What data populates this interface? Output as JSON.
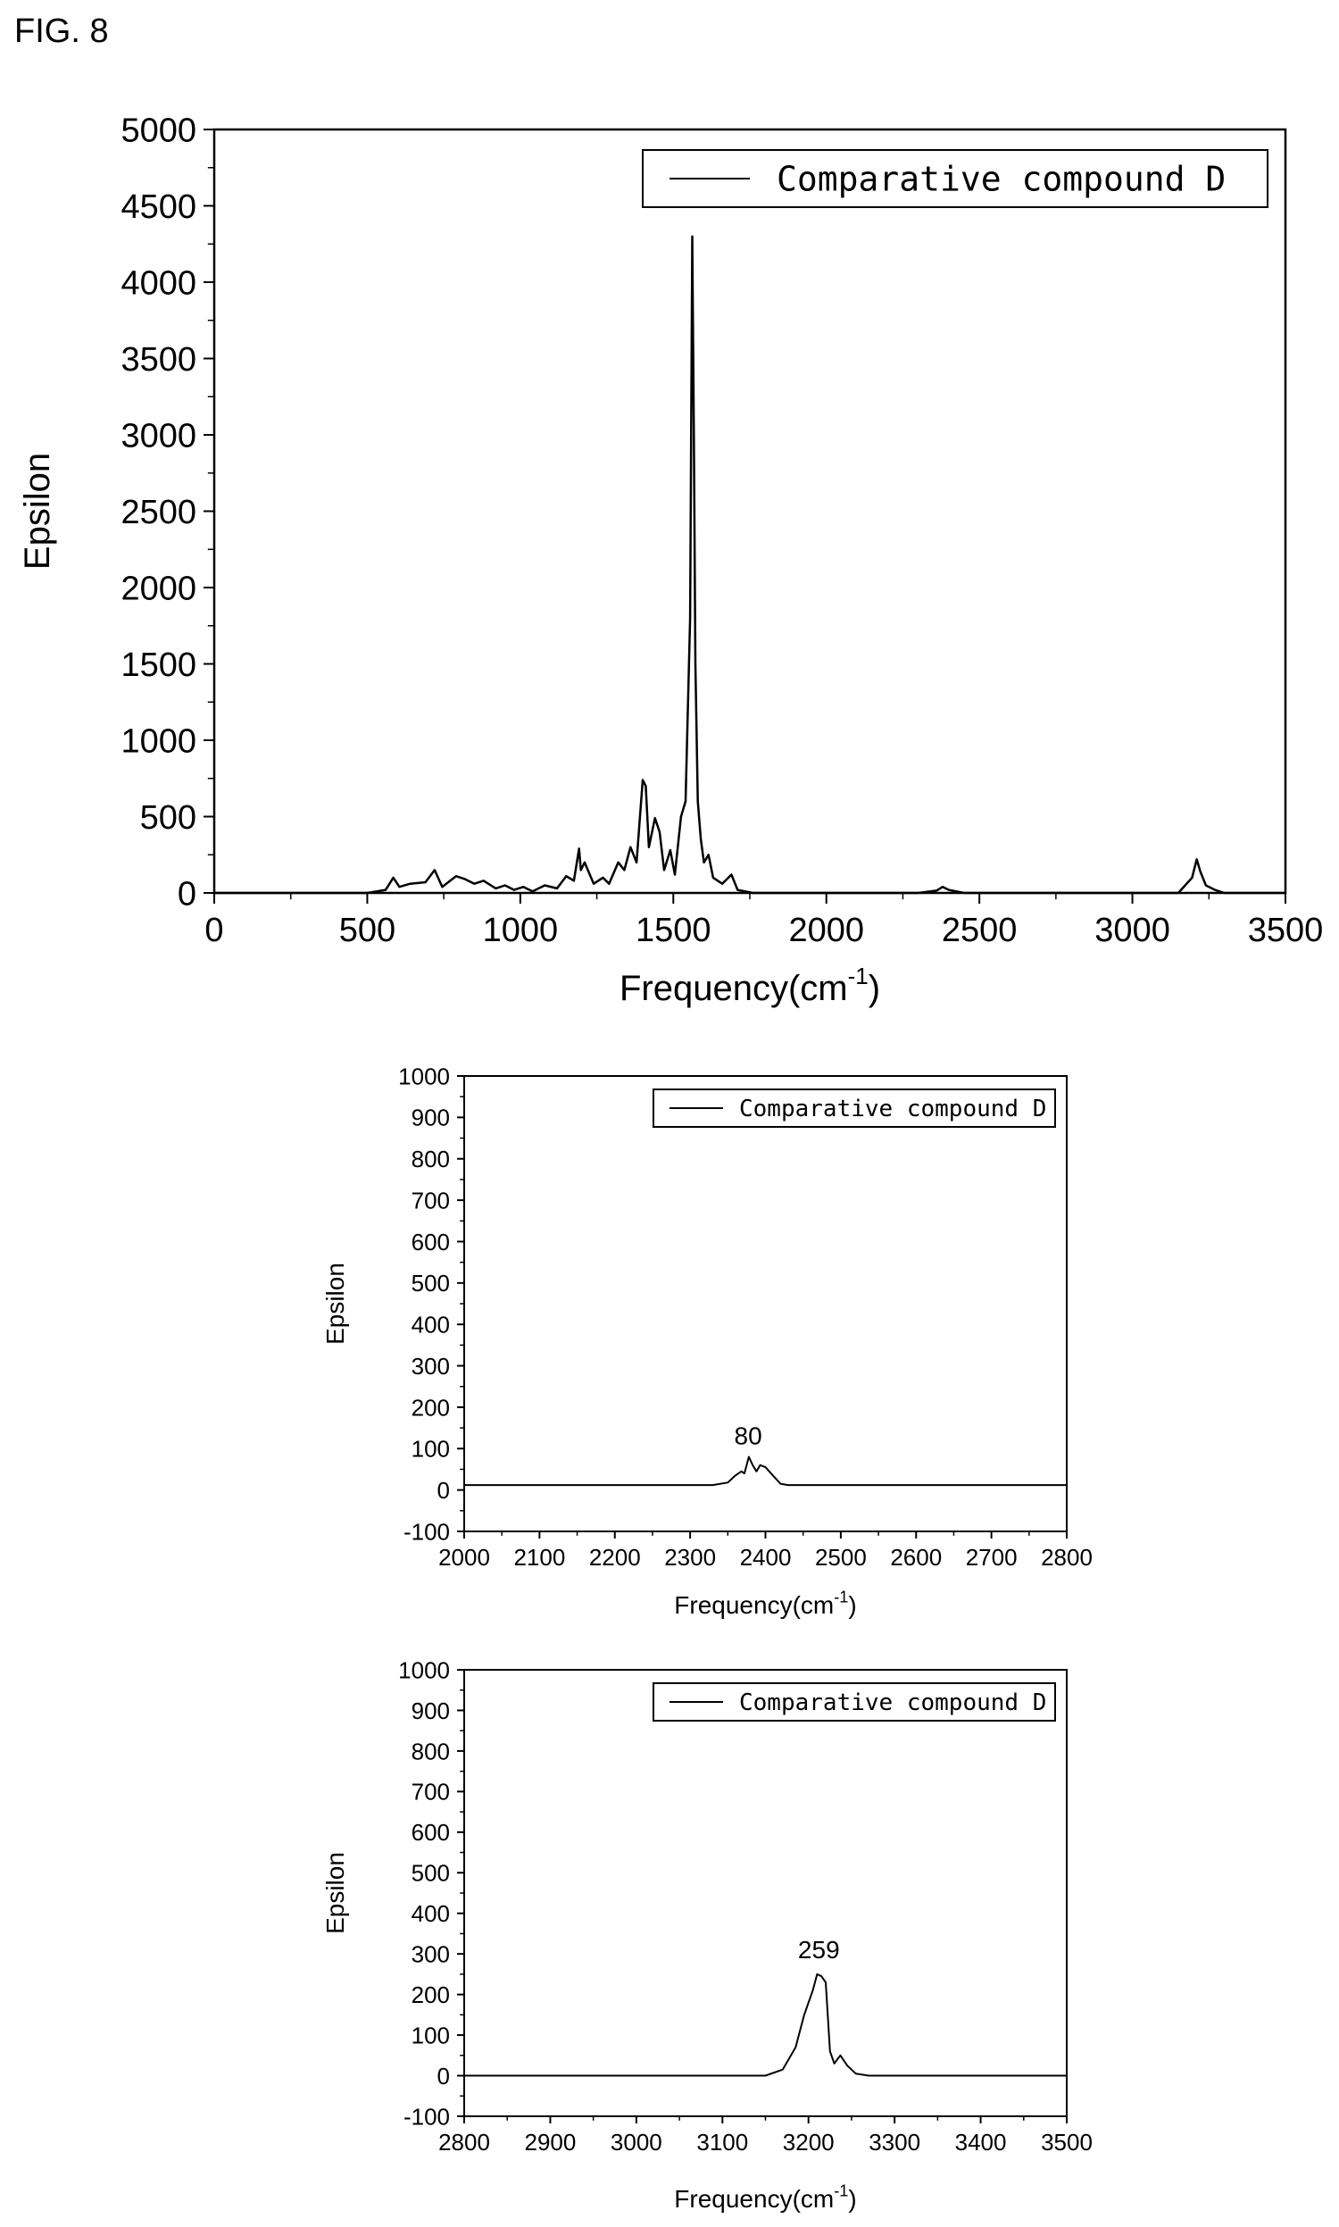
{
  "figure_label": "FIG. 8",
  "chart_data": [
    {
      "type": "line",
      "title": "",
      "xlabel": "Frequency(cm",
      "xlabel_sup": "-1",
      "xlabel_suffix": ")",
      "ylabel": "Epsilon",
      "xlim": [
        0,
        3500
      ],
      "ylim": [
        0,
        5000
      ],
      "xticks": [
        0,
        500,
        1000,
        1500,
        2000,
        2500,
        3000,
        3500
      ],
      "yticks": [
        0,
        500,
        1000,
        1500,
        2000,
        2500,
        3000,
        3500,
        4000,
        4500,
        5000
      ],
      "xtick_labels": [
        "0",
        "500",
        "1000",
        "1500",
        "2000",
        "2500",
        "3000",
        "3500"
      ],
      "ytick_labels": [
        "0",
        "500",
        "1000",
        "1500",
        "2000",
        "2500",
        "3000",
        "3500",
        "4000",
        "4500",
        "5000"
      ],
      "grid": false,
      "legend_position": "top-right",
      "series": [
        {
          "name": "Comparative compound D",
          "x": [
            0,
            500,
            560,
            585,
            605,
            640,
            690,
            720,
            745,
            790,
            820,
            850,
            880,
            920,
            950,
            980,
            1010,
            1040,
            1080,
            1120,
            1150,
            1175,
            1192,
            1198,
            1210,
            1240,
            1270,
            1290,
            1320,
            1340,
            1360,
            1380,
            1400,
            1410,
            1420,
            1440,
            1455,
            1470,
            1490,
            1505,
            1525,
            1540,
            1555,
            1562,
            1567,
            1572,
            1580,
            1590,
            1600,
            1615,
            1630,
            1660,
            1690,
            1710,
            1760,
            2300,
            2360,
            2380,
            2400,
            2450,
            3150,
            3195,
            3210,
            3222,
            3240,
            3270,
            3300,
            3500
          ],
          "y": [
            0,
            0,
            20,
            100,
            40,
            60,
            70,
            150,
            40,
            110,
            90,
            60,
            80,
            30,
            50,
            20,
            40,
            10,
            50,
            30,
            110,
            80,
            290,
            150,
            200,
            60,
            100,
            60,
            200,
            150,
            300,
            200,
            740,
            700,
            300,
            490,
            400,
            150,
            280,
            120,
            500,
            600,
            1800,
            4300,
            3000,
            1500,
            600,
            350,
            200,
            250,
            100,
            60,
            120,
            20,
            0,
            0,
            15,
            40,
            20,
            0,
            0,
            100,
            220,
            140,
            50,
            20,
            0,
            0
          ]
        }
      ]
    },
    {
      "type": "line",
      "title": "",
      "xlabel": "Frequency(cm",
      "xlabel_sup": "-1",
      "xlabel_suffix": ")",
      "ylabel": "Epsilon",
      "xlim": [
        2000,
        2800
      ],
      "ylim": [
        -100,
        1000
      ],
      "xticks": [
        2000,
        2100,
        2200,
        2300,
        2400,
        2500,
        2600,
        2700,
        2800
      ],
      "yticks": [
        -100,
        0,
        100,
        200,
        300,
        400,
        500,
        600,
        700,
        800,
        900,
        1000
      ],
      "xtick_labels": [
        "2000",
        "2100",
        "2200",
        "2300",
        "2400",
        "2500",
        "2600",
        "2700",
        "2800"
      ],
      "ytick_labels": [
        "-100",
        "0",
        "100",
        "200",
        "300",
        "400",
        "500",
        "600",
        "700",
        "800",
        "900",
        "1000"
      ],
      "grid": false,
      "legend_position": "top-right",
      "annotations": [
        {
          "text": "80",
          "x": 2377,
          "y": 80
        }
      ],
      "series": [
        {
          "name": "Comparative compound D",
          "x": [
            2000,
            2330,
            2350,
            2360,
            2368,
            2372,
            2378,
            2383,
            2388,
            2393,
            2400,
            2410,
            2420,
            2430,
            2800
          ],
          "y": [
            12,
            12,
            18,
            35,
            45,
            40,
            80,
            60,
            45,
            60,
            55,
            35,
            15,
            12,
            12
          ]
        }
      ]
    },
    {
      "type": "line",
      "title": "",
      "xlabel": "Frequency(cm",
      "xlabel_sup": "-1",
      "xlabel_suffix": ")",
      "ylabel": "Epsilon",
      "xlim": [
        2800,
        3500
      ],
      "ylim": [
        -100,
        1000
      ],
      "xticks": [
        2800,
        2900,
        3000,
        3100,
        3200,
        3300,
        3400,
        3500
      ],
      "yticks": [
        -100,
        0,
        100,
        200,
        300,
        400,
        500,
        600,
        700,
        800,
        900,
        1000
      ],
      "xtick_labels": [
        "2800",
        "2900",
        "3000",
        "3100",
        "3200",
        "3300",
        "3400",
        "3500"
      ],
      "ytick_labels": [
        "-100",
        "0",
        "100",
        "200",
        "300",
        "400",
        "500",
        "600",
        "700",
        "800",
        "900",
        "1000"
      ],
      "grid": false,
      "legend_position": "top-right",
      "annotations": [
        {
          "text": "259",
          "x": 3212,
          "y": 259
        }
      ],
      "series": [
        {
          "name": "Comparative compound D",
          "x": [
            2800,
            3150,
            3170,
            3185,
            3195,
            3205,
            3210,
            3215,
            3220,
            3225,
            3230,
            3237,
            3245,
            3255,
            3270,
            3500
          ],
          "y": [
            0,
            0,
            15,
            70,
            150,
            210,
            250,
            245,
            230,
            60,
            30,
            50,
            25,
            5,
            0,
            0
          ]
        }
      ]
    }
  ]
}
